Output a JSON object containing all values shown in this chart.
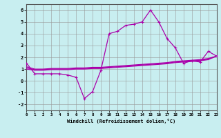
{
  "x": [
    0,
    1,
    2,
    3,
    4,
    5,
    6,
    7,
    8,
    9,
    10,
    11,
    12,
    13,
    14,
    15,
    16,
    17,
    18,
    19,
    20,
    21,
    22,
    23
  ],
  "line1": [
    1.5,
    0.6,
    0.6,
    0.6,
    0.6,
    0.5,
    0.3,
    -1.5,
    -0.9,
    0.9,
    4.0,
    4.2,
    4.7,
    4.8,
    5.0,
    6.0,
    5.0,
    3.6,
    2.8,
    1.5,
    1.7,
    1.6,
    2.5,
    2.1
  ],
  "line2": [
    1.0,
    0.9,
    0.9,
    0.95,
    0.95,
    0.95,
    1.0,
    1.0,
    1.05,
    1.05,
    1.1,
    1.15,
    1.2,
    1.25,
    1.3,
    1.35,
    1.4,
    1.45,
    1.55,
    1.6,
    1.65,
    1.7,
    1.8,
    2.1
  ],
  "line3": [
    1.1,
    0.95,
    0.95,
    1.0,
    1.0,
    1.0,
    1.05,
    1.05,
    1.1,
    1.1,
    1.15,
    1.2,
    1.25,
    1.3,
    1.35,
    1.4,
    1.45,
    1.5,
    1.6,
    1.65,
    1.7,
    1.75,
    1.85,
    2.1
  ],
  "line4": [
    1.2,
    1.0,
    1.0,
    1.05,
    1.05,
    1.05,
    1.1,
    1.1,
    1.15,
    1.15,
    1.2,
    1.25,
    1.3,
    1.35,
    1.4,
    1.45,
    1.5,
    1.55,
    1.65,
    1.7,
    1.75,
    1.8,
    1.9,
    2.1
  ],
  "line_color": "#aa00aa",
  "bg_color": "#c8eef0",
  "grid_color": "#999999",
  "ylabel_ticks": [
    -2,
    -1,
    0,
    1,
    2,
    3,
    4,
    5,
    6
  ],
  "xlabel_ticks": [
    0,
    1,
    2,
    3,
    4,
    5,
    6,
    7,
    8,
    9,
    10,
    11,
    12,
    13,
    14,
    15,
    16,
    17,
    18,
    19,
    20,
    21,
    22,
    23
  ],
  "xlim": [
    0,
    23
  ],
  "ylim": [
    -2.5,
    6.5
  ],
  "xlabel": "Windchill (Refroidissement éolien,°C)"
}
